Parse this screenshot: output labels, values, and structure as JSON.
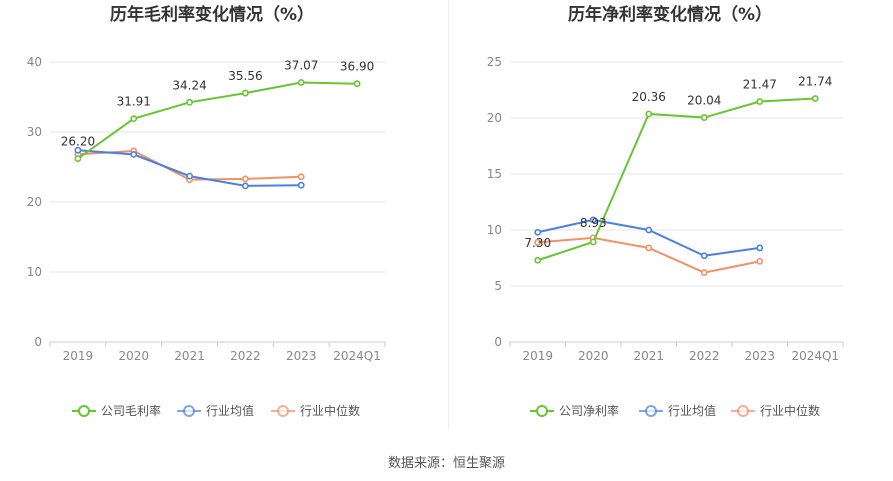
{
  "source_text": "数据来源：恒生聚源",
  "legend_icon": "circle-line-icon",
  "colors": {
    "company": "#66c631",
    "avg": "#4a80e4",
    "median": "#f29066",
    "grid": "#e6e6e6",
    "axis": "#cccccc"
  },
  "chart_data": [
    {
      "type": "line",
      "title": "历年毛利率变化情况（%）",
      "categories": [
        "2019",
        "2020",
        "2021",
        "2022",
        "2023",
        "2024Q1"
      ],
      "ylim": [
        0,
        40
      ],
      "yticks": [
        0,
        10,
        20,
        30,
        40
      ],
      "grid": true,
      "legend_position": "bottom",
      "series": [
        {
          "name": "公司毛利率",
          "values": [
            26.2,
            31.91,
            34.24,
            35.56,
            37.07,
            36.9
          ],
          "labels": [
            "26.20",
            "31.91",
            "34.24",
            "35.56",
            "37.07",
            "36.90"
          ]
        },
        {
          "name": "行业均值",
          "values": [
            27.4,
            26.8,
            23.7,
            22.3,
            22.4,
            null
          ]
        },
        {
          "name": "行业中位数",
          "values": [
            26.8,
            27.3,
            23.2,
            23.3,
            23.6,
            null
          ]
        }
      ]
    },
    {
      "type": "line",
      "title": "历年净利率变化情况（%）",
      "categories": [
        "2019",
        "2020",
        "2021",
        "2022",
        "2023",
        "2024Q1"
      ],
      "ylim": [
        0,
        25
      ],
      "yticks": [
        0,
        5,
        10,
        15,
        20,
        25
      ],
      "grid": true,
      "legend_position": "bottom",
      "series": [
        {
          "name": "公司净利率",
          "values": [
            7.3,
            8.93,
            20.36,
            20.04,
            21.47,
            21.74
          ],
          "labels": [
            "7.30",
            "8.93",
            "20.36",
            "20.04",
            "21.47",
            "21.74"
          ]
        },
        {
          "name": "行业均值",
          "values": [
            9.8,
            10.9,
            10.0,
            7.7,
            8.4,
            null
          ]
        },
        {
          "name": "行业中位数",
          "values": [
            8.9,
            9.3,
            8.4,
            6.2,
            7.2,
            null
          ]
        }
      ]
    }
  ]
}
